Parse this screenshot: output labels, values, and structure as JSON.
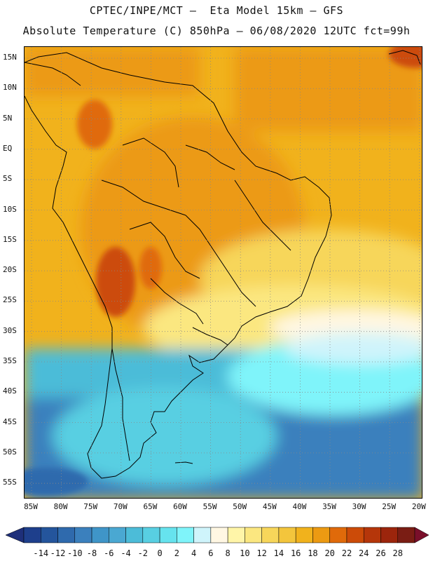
{
  "header": {
    "title_line1": "CPTEC/INPE/MCT –  Eta Model 15km – GFS",
    "title_line2": "Absolute Temperature (C) 850hPa – 06/08/2020 12UTC fct=99h"
  },
  "map": {
    "region": "South America",
    "variable": "Absolute Temperature (C) 850hPa",
    "grid": true,
    "lat_labels": [
      "15N",
      "10N",
      "5N",
      "EQ",
      "5S",
      "10S",
      "15S",
      "20S",
      "25S",
      "30S",
      "35S",
      "40S",
      "45S",
      "50S",
      "55S"
    ],
    "lon_labels": [
      "85W",
      "80W",
      "75W",
      "70W",
      "65W",
      "60W",
      "55W",
      "50W",
      "45W",
      "40W",
      "35W",
      "30W",
      "25W",
      "20W"
    ]
  },
  "colorbar": {
    "labels": [
      "-14",
      "-12",
      "-10",
      "-8",
      "-6",
      "-4",
      "-2",
      "0",
      "2",
      "4",
      "6",
      "8",
      "10",
      "12",
      "14",
      "16",
      "18",
      "20",
      "22",
      "24",
      "26",
      "28"
    ],
    "colors": [
      "#1e3f8c",
      "#24559c",
      "#2f6aad",
      "#3b80bd",
      "#3f95c8",
      "#4aa8d2",
      "#4cbcd8",
      "#58cfe2",
      "#66e3ee",
      "#7ff4fa",
      "#cff4fb",
      "#fff7e3",
      "#fff5a8",
      "#fbe780",
      "#f7d65a",
      "#f3c53c",
      "#f1b21c",
      "#ec9a12",
      "#e06a0a",
      "#cc4b08",
      "#b5360a",
      "#9c250c",
      "#7a1d14"
    ],
    "low_arrow_color": "#1e2f7a",
    "high_arrow_color": "#7a0f2a"
  }
}
